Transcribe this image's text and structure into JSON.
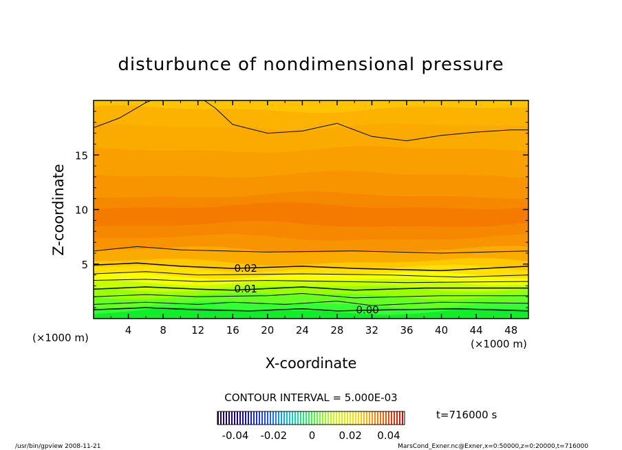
{
  "chart_data": {
    "type": "contour",
    "title": "disturbunce of nondimensional pressure",
    "xlabel": "X-coordinate",
    "ylabel": "Z-coordinate",
    "x_unit": "(×1000 m)",
    "y_unit": "(×1000 m)",
    "xlim": [
      0,
      50
    ],
    "ylim": [
      0,
      20
    ],
    "x_ticks": [
      "4",
      "8",
      "12",
      "16",
      "20",
      "24",
      "28",
      "32",
      "36",
      "40",
      "44",
      "48"
    ],
    "y_ticks": [
      "5",
      "10",
      "15"
    ],
    "contour_interval_text": "CONTOUR INTERVAL = 5.000E-03",
    "contour_labels": [
      {
        "text": "0.02",
        "x": 17.5,
        "z": 4.6
      },
      {
        "text": "0.01",
        "x": 17.5,
        "z": 2.7
      },
      {
        "text": "0.00",
        "x": 31.5,
        "z": 0.8
      }
    ],
    "colorbar": {
      "min": -0.04,
      "max": 0.04,
      "ticks": [
        "-0.04",
        "-0.02",
        "0",
        "0.02",
        "0.04"
      ]
    },
    "time_label": "t=716000 s"
  },
  "footer": {
    "left": "/usr/bin/gpview  2008-11-21",
    "right": "MarsCond_Exner.nc@Exner,x=0:50000,z=0:20000,t=716000"
  }
}
